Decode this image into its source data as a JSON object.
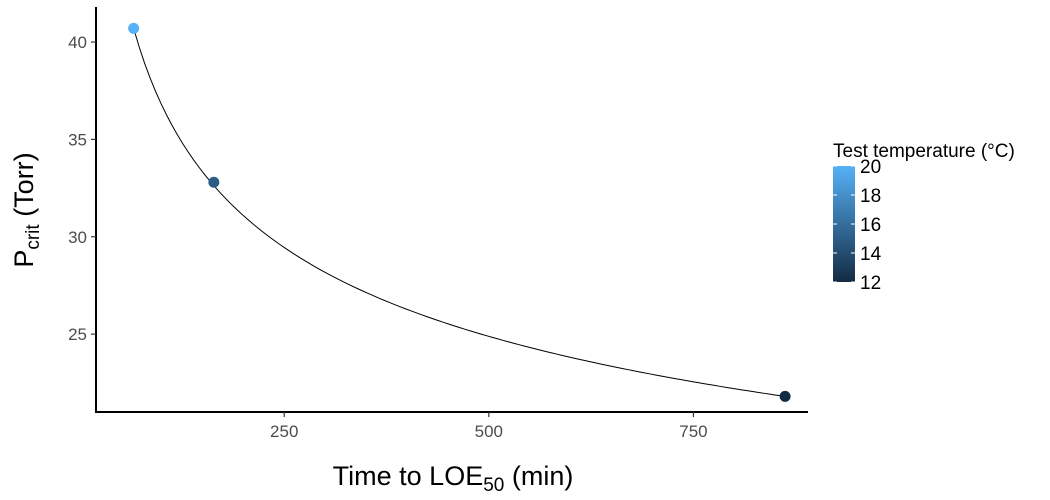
{
  "chart_data": {
    "type": "scatter",
    "xlabel": {
      "main": "Time to LOE",
      "sub": "50",
      "tail": " (min)"
    },
    "ylabel": {
      "main": "P",
      "sub": "crit",
      "tail": " (Torr)"
    },
    "xlim": [
      20,
      890
    ],
    "ylim": [
      21,
      41.8
    ],
    "xticks": [
      250,
      500,
      750
    ],
    "yticks": [
      25,
      30,
      35,
      40
    ],
    "grid": false,
    "points": [
      {
        "x": 66,
        "y": 40.7,
        "temperature": 20
      },
      {
        "x": 164,
        "y": 32.8,
        "temperature": 15
      },
      {
        "x": 862,
        "y": 21.8,
        "temperature": 12
      }
    ],
    "fit_curve": {
      "type": "smooth",
      "from_x": 66,
      "to_x": 862
    },
    "legend": {
      "title": "Test temperature (°C)",
      "placement": "right",
      "range": [
        12,
        20
      ],
      "ticks": [
        20,
        18,
        16,
        14,
        12
      ],
      "low_color": "#132b43",
      "high_color": "#56b1f7"
    }
  }
}
